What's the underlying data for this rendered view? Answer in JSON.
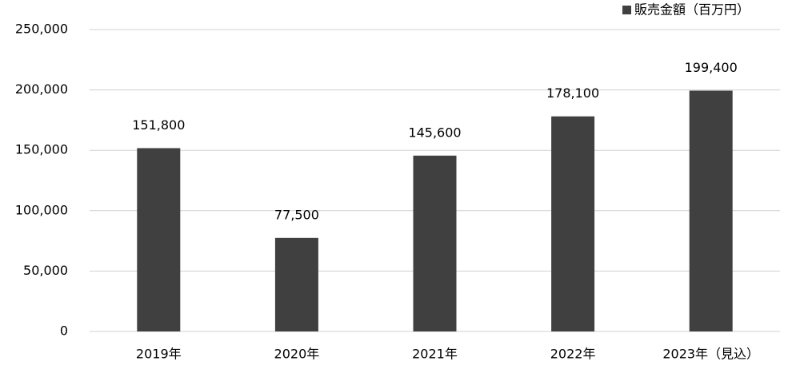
{
  "chart_data": {
    "type": "bar",
    "categories": [
      "2019年",
      "2020年",
      "2021年",
      "2022年",
      "2023年（見込）"
    ],
    "series": [
      {
        "name": "販売金額（百万円）",
        "color": "#404040",
        "values": [
          151800,
          77500,
          145600,
          178100,
          199400
        ],
        "value_labels": [
          "151,800",
          "77,500",
          "145,600",
          "178,100",
          "199,400"
        ]
      }
    ],
    "ylim": [
      0,
      250000
    ],
    "yticks": [
      0,
      {
        "value": 50000,
        "label": "50,000"
      },
      {
        "value": 100000,
        "label": "100,000"
      },
      {
        "value": 150000,
        "label": "150,000"
      },
      {
        "value": 200000,
        "label": "200,000"
      },
      {
        "value": 250000,
        "label": "250,000"
      }
    ],
    "grid": true,
    "legend": "top-right"
  }
}
